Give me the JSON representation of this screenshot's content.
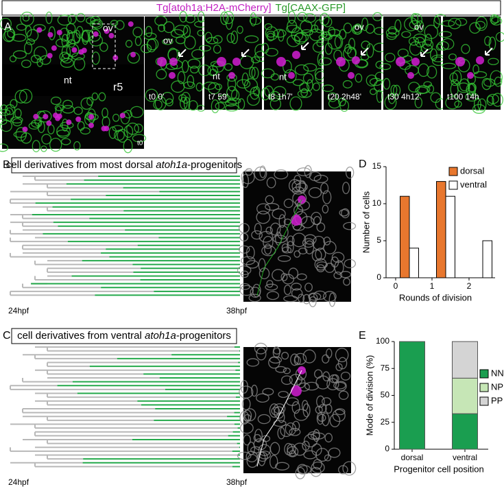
{
  "header": {
    "title_part1": "Tg[atoh1a:H2A-mCherry]",
    "title_part2": "Tg[CAAX-GFP]"
  },
  "panel_a": {
    "label": "A",
    "main_labels": [
      "ov",
      "nt",
      "r5",
      "t0"
    ],
    "frames": [
      {
        "time": "t0 0'",
        "labels": [
          "ov"
        ]
      },
      {
        "time": "t7 59'",
        "labels": [
          "nt"
        ]
      },
      {
        "time": "t8 1h7'",
        "labels": [
          "nt"
        ]
      },
      {
        "time": "t20 2h48'",
        "labels": [
          "ov"
        ]
      },
      {
        "time": "t30 4h12'",
        "labels": [
          "ov"
        ]
      },
      {
        "time": "t100 14h",
        "labels": []
      }
    ]
  },
  "panel_b": {
    "label": "B",
    "title": [
      "cell derivatives from most dorsal ",
      "atoh1a",
      "-progenitors"
    ],
    "start": "24hpf",
    "end": "38hpf"
  },
  "panel_c": {
    "label": "C",
    "title": [
      "cell derivatives from ventral ",
      "atoh1a",
      "-progenitors"
    ],
    "start": "24hpf",
    "end": "38hpf"
  },
  "chart_data": [
    {
      "label": "D",
      "type": "bar",
      "y_label": "Number of cells",
      "x_label": "Rounds of division",
      "categories": [
        "0",
        "1",
        "2"
      ],
      "series": [
        {
          "name": "dorsal",
          "color": "#e8772e",
          "values": [
            11,
            13,
            0
          ]
        },
        {
          "name": "ventral",
          "color": "#ffffff",
          "values": [
            4,
            11,
            5
          ]
        }
      ],
      "ylim": [
        0,
        15
      ],
      "yticks": [
        0,
        5,
        10,
        15
      ],
      "legend": "upper right"
    },
    {
      "label": "E",
      "type": "stacked-bar",
      "y_label": "Mode of division (%)",
      "x_label": "Progenitor cell position",
      "categories": [
        "dorsal",
        "ventral"
      ],
      "series": [
        {
          "name": "NN",
          "color": "#1a9e50",
          "values": [
            100,
            33
          ]
        },
        {
          "name": "NP",
          "color": "#c6e6b6",
          "values": [
            0,
            33
          ]
        },
        {
          "name": "PP",
          "color": "#d4d4d4",
          "values": [
            0,
            34
          ]
        }
      ],
      "ylim": [
        0,
        100
      ],
      "yticks": [
        0,
        25,
        50,
        75,
        100
      ],
      "legend": "right"
    }
  ]
}
